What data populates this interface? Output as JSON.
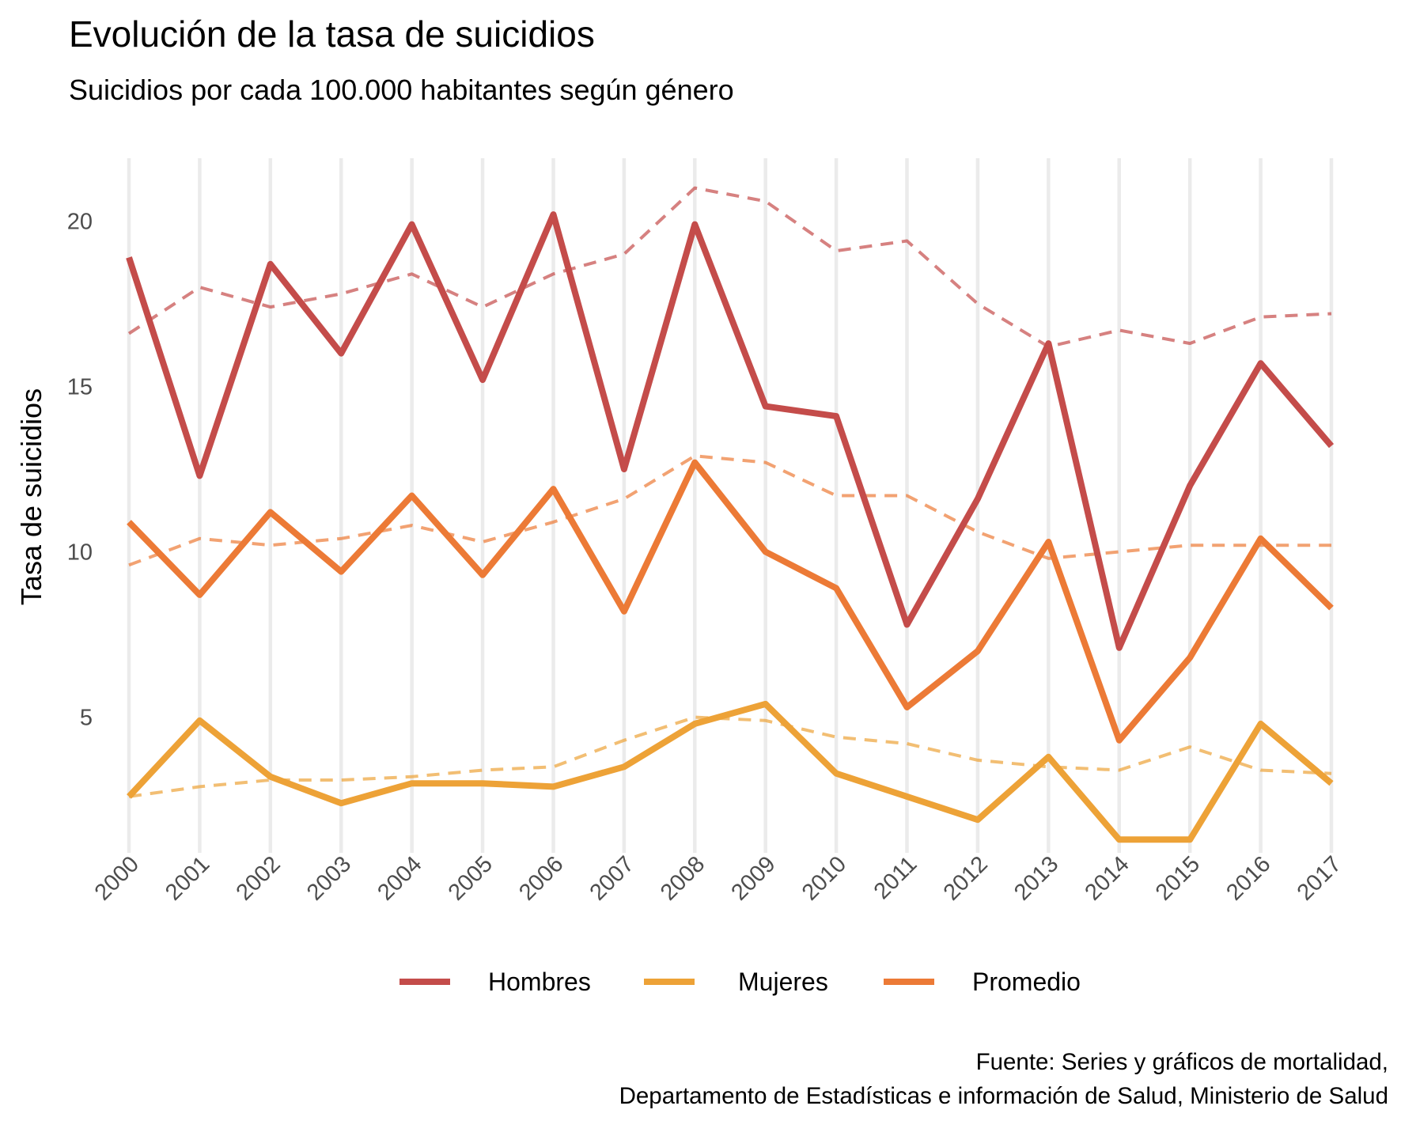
{
  "chart_data": {
    "type": "line",
    "title": "Evolución de la tasa de suicidios",
    "subtitle": "Suicidios por cada 100.000 habitantes según género",
    "xlabel": "",
    "ylabel": "Tasa de suicidios",
    "caption": [
      "Fuente: Series y gráficos de mortalidad,",
      "Departamento de Estadísticas e información de Salud, Ministerio de Salud"
    ],
    "x": [
      2000,
      2001,
      2002,
      2003,
      2004,
      2005,
      2006,
      2007,
      2008,
      2009,
      2010,
      2011,
      2012,
      2013,
      2014,
      2015,
      2016,
      2017
    ],
    "x_tick_labels": [
      "2000",
      "2001",
      "2002",
      "2003",
      "2004",
      "2005",
      "2006",
      "2007",
      "2008",
      "2009",
      "2010",
      "2011",
      "2012",
      "2013",
      "2014",
      "2015",
      "2016",
      "2017"
    ],
    "y_ticks": [
      5,
      10,
      15,
      20
    ],
    "y_tick_labels": [
      "5",
      "10",
      "15",
      "20"
    ],
    "ylim": [
      0.9,
      21.9
    ],
    "grid": {
      "x_major": true,
      "y_major": false
    },
    "legend": {
      "position": "bottom"
    },
    "series": [
      {
        "name": "Hombres",
        "color": "#c44c4a",
        "values": [
          18.9,
          12.3,
          18.7,
          16.0,
          19.9,
          15.2,
          20.2,
          12.5,
          19.9,
          14.4,
          14.1,
          7.8,
          11.6,
          16.3,
          7.1,
          12.0,
          15.7,
          13.2
        ],
        "dashed_values": [
          16.6,
          18.0,
          17.4,
          17.8,
          18.4,
          17.4,
          18.4,
          19.0,
          21.0,
          20.6,
          19.1,
          19.4,
          17.5,
          16.2,
          16.7,
          16.3,
          17.1,
          17.2
        ]
      },
      {
        "name": "Mujeres",
        "color": "#eda237",
        "values": [
          2.6,
          4.9,
          3.2,
          2.4,
          3.0,
          3.0,
          2.9,
          3.5,
          4.8,
          5.4,
          3.3,
          2.6,
          1.9,
          3.8,
          1.3,
          1.3,
          4.8,
          3.0
        ],
        "dashed_values": [
          2.6,
          2.9,
          3.1,
          3.1,
          3.2,
          3.4,
          3.5,
          4.3,
          5.0,
          4.9,
          4.4,
          4.2,
          3.7,
          3.5,
          3.4,
          4.1,
          3.4,
          3.3
        ]
      },
      {
        "name": "Promedio",
        "color": "#ec7a36",
        "values": [
          10.9,
          8.7,
          11.2,
          9.4,
          11.7,
          9.3,
          11.9,
          8.2,
          12.7,
          10.0,
          8.9,
          5.3,
          7.0,
          10.3,
          4.3,
          6.8,
          10.4,
          8.3
        ],
        "dashed_values": [
          9.6,
          10.4,
          10.2,
          10.4,
          10.8,
          10.3,
          10.9,
          11.6,
          12.9,
          12.7,
          11.7,
          11.7,
          10.6,
          9.8,
          10.0,
          10.2,
          10.2,
          10.2
        ]
      }
    ]
  }
}
